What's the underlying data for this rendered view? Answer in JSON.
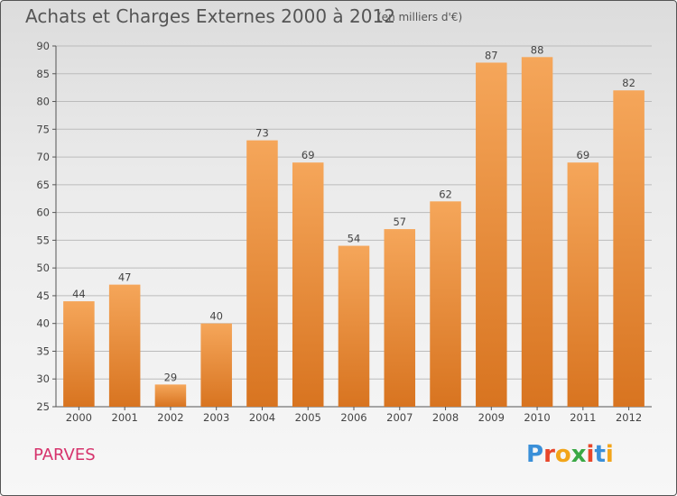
{
  "header": {
    "title": "Achats et Charges Externes 2000 à 2012",
    "unit": "(en milliers d'€)"
  },
  "footer": {
    "commune": "PARVES",
    "logo": "Proxiti"
  },
  "colors": {
    "bar_top": "#f5a65a",
    "bar_bottom": "#d87420",
    "commune": "#d6336c"
  },
  "chart_data": {
    "type": "bar",
    "categories": [
      "2000",
      "2001",
      "2002",
      "2003",
      "2004",
      "2005",
      "2006",
      "2007",
      "2008",
      "2009",
      "2010",
      "2011",
      "2012"
    ],
    "values": [
      44,
      47,
      29,
      40,
      73,
      69,
      54,
      57,
      62,
      87,
      88,
      69,
      82
    ],
    "title": "Achats et Charges Externes 2000 à 2012",
    "subtitle": "(en milliers d'€)",
    "ylim": [
      25,
      90
    ],
    "yticks": [
      25,
      30,
      35,
      40,
      45,
      50,
      55,
      60,
      65,
      70,
      75,
      80,
      85,
      90
    ],
    "grid": true
  }
}
